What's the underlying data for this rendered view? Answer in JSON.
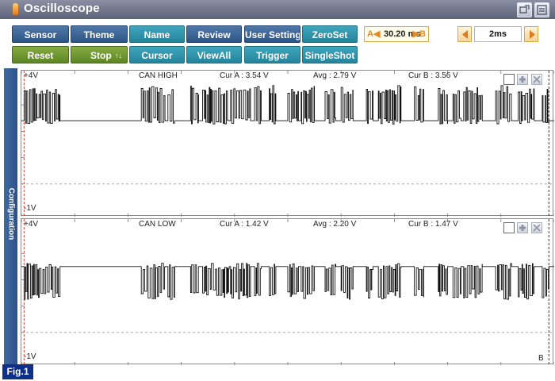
{
  "window": {
    "title": "Oscilloscope",
    "colors": {
      "titlebar": "#5d6378",
      "blue_button": "#2d5585",
      "teal_button": "#24849b",
      "green_button": "#5d8524",
      "cursor_a": "#e0403a"
    }
  },
  "toolbar": {
    "row1": [
      "Sensor",
      "Theme",
      "Name",
      "Review",
      "User Setting",
      "ZeroSet"
    ],
    "row2": [
      "Reset",
      "Stop",
      "Cursor",
      "ViewAll",
      "Trigger",
      "SingleShot"
    ],
    "stop_updown": "↑↓",
    "cursor_a_tag": "A◀",
    "cursor_value": "30.20 ms",
    "cursor_b_tag": "▶B",
    "time_div": "2ms"
  },
  "side_tab": {
    "label": "Configuration"
  },
  "channels": [
    {
      "name": "CAN HIGH",
      "top_label": "+4V",
      "bottom_label": "-1V",
      "cur_a": "Cur A : 3.54 V",
      "avg": "Avg : 2.79 V",
      "cur_b": "Cur B : 3.56 V"
    },
    {
      "name": "CAN LOW",
      "top_label": "+4V",
      "bottom_label": "-1V",
      "cur_a": "Cur A : 1.42 V",
      "avg": "Avg : 2.20 V",
      "cur_b": "Cur B : 1.47 V",
      "b_marker": "B"
    }
  ],
  "chart_data": [
    {
      "type": "line",
      "title": "CAN HIGH",
      "ylim": [
        -1,
        4
      ],
      "x_unit": "ms",
      "xlim": [
        0,
        40
      ],
      "grid": true,
      "cursors": {
        "a_ms": 0.2,
        "b_ms": 39.6
      },
      "series": [
        {
          "name": "CAN HIGH",
          "recessive_v": 2.4,
          "dominant_v": 3.55,
          "dominant_segments_ms": [
            [
              0.2,
              2.9
            ],
            [
              9.0,
              10.8
            ],
            [
              11.0,
              11.5
            ],
            [
              12.7,
              13.3
            ],
            [
              13.6,
              15.6
            ],
            [
              15.7,
              17.2
            ],
            [
              17.5,
              18.0
            ],
            [
              18.6,
              19.1
            ],
            [
              20.0,
              20.8
            ],
            [
              21.0,
              22.0
            ],
            [
              22.8,
              23.6
            ],
            [
              24.0,
              24.9
            ],
            [
              25.9,
              26.4
            ],
            [
              26.8,
              28.5
            ],
            [
              29.5,
              30.2
            ],
            [
              31.3,
              32.0
            ],
            [
              32.4,
              33.0
            ],
            [
              33.2,
              34.6
            ],
            [
              35.6,
              36.8
            ],
            [
              37.3,
              38.5
            ],
            [
              39.1,
              39.6
            ]
          ]
        }
      ]
    },
    {
      "type": "line",
      "title": "CAN LOW",
      "ylim": [
        -1,
        4
      ],
      "x_unit": "ms",
      "xlim": [
        0,
        40
      ],
      "grid": true,
      "cursors": {
        "a_ms": 0.2,
        "b_ms": 39.6
      },
      "series": [
        {
          "name": "CAN LOW",
          "recessive_v": 2.5,
          "dominant_v": 1.45,
          "dominant_segments_ms": [
            [
              0.2,
              2.9
            ],
            [
              9.0,
              10.8
            ],
            [
              11.0,
              11.5
            ],
            [
              12.7,
              13.3
            ],
            [
              13.6,
              15.6
            ],
            [
              15.7,
              17.2
            ],
            [
              17.5,
              18.0
            ],
            [
              18.6,
              19.1
            ],
            [
              20.0,
              20.8
            ],
            [
              21.0,
              22.0
            ],
            [
              22.8,
              23.6
            ],
            [
              24.0,
              24.9
            ],
            [
              25.9,
              26.4
            ],
            [
              26.8,
              28.5
            ],
            [
              29.5,
              30.2
            ],
            [
              31.3,
              32.0
            ],
            [
              32.4,
              33.0
            ],
            [
              33.2,
              34.6
            ],
            [
              35.6,
              36.8
            ],
            [
              37.3,
              38.5
            ],
            [
              39.1,
              39.6
            ]
          ]
        }
      ]
    }
  ],
  "figure_label": "Fig.1"
}
